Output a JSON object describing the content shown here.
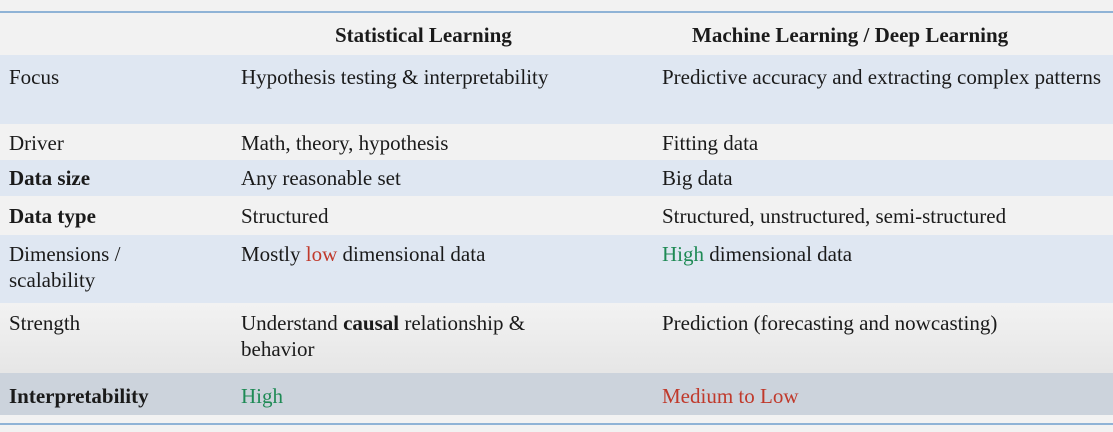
{
  "headers": [
    "",
    "Statistical Learning",
    "Machine Learning / Deep Learning"
  ],
  "rows": [
    {
      "label": "Focus",
      "stat": "Hypothesis testing & interpretability",
      "ml": "Predictive accuracy and extracting complex patterns"
    },
    {
      "label": "Driver",
      "stat": "Math, theory, hypothesis",
      "ml": "Fitting data"
    },
    {
      "label": "Data size",
      "stat": "Any reasonable set",
      "ml": "Big data"
    },
    {
      "label": "Data type",
      "stat": "Structured",
      "ml": "Structured, unstructured, semi-structured"
    },
    {
      "label": "Dimensions / scalability",
      "stat_pre": "Mostly ",
      "stat_hl": "low",
      "stat_post": " dimensional data",
      "ml_hl": "High",
      "ml_post": " dimensional data"
    },
    {
      "label": "Strength",
      "stat_pre": "Understand ",
      "stat_bold": "causal",
      "stat_post": " relationship & behavior",
      "ml": "Prediction (forecasting and nowcasting)"
    },
    {
      "label": "Interpretability",
      "stat": "High",
      "ml": "Medium to Low"
    }
  ],
  "colors": {
    "highlight_red": "#c0392b",
    "highlight_green": "#1e8a55",
    "row_band": "#dfe7f2",
    "rule": "#8fb3d6"
  }
}
